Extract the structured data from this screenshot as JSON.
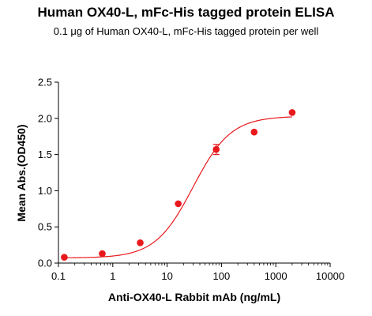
{
  "chart_data": {
    "type": "scatter",
    "title": "Human OX40-L, mFc-His tagged protein ELISA",
    "subtitle": "0.1 μg of Human OX40-L, mFc-His tagged protein per well",
    "xlabel": "Anti-OX40-L Rabbit mAb (ng/mL)",
    "ylabel": "Mean Abs.(OD450)",
    "x_scale": "log",
    "xlim": [
      0.1,
      10000
    ],
    "ylim": [
      0,
      2.5
    ],
    "x_ticks": [
      "0.1",
      "1",
      "10",
      "100",
      "1000",
      "10000"
    ],
    "y_ticks": [
      "0.0",
      "0.5",
      "1.0",
      "1.5",
      "2.0",
      "2.5"
    ],
    "color": "#e8191c",
    "grid": false,
    "points": [
      {
        "x": 0.128,
        "y": 0.08,
        "err": 0.0
      },
      {
        "x": 0.64,
        "y": 0.13,
        "err": 0.0
      },
      {
        "x": 3.2,
        "y": 0.28,
        "err": 0.0
      },
      {
        "x": 16,
        "y": 0.82,
        "err": 0.0
      },
      {
        "x": 80,
        "y": 1.57,
        "err": 0.07
      },
      {
        "x": 400,
        "y": 1.81,
        "err": 0.0
      },
      {
        "x": 2000,
        "y": 2.08,
        "err": 0.0
      }
    ],
    "fit": {
      "bottom": 0.07,
      "top": 2.03,
      "ec50": 30,
      "hill": 1.25
    }
  }
}
